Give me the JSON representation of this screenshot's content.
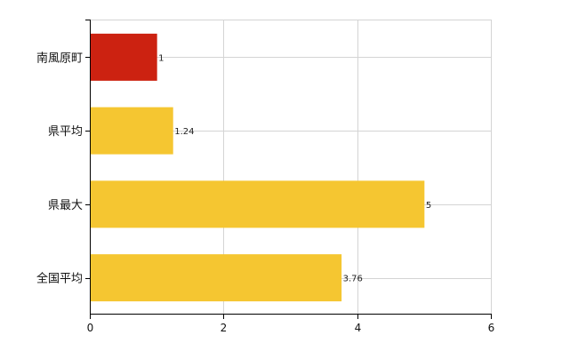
{
  "chart_data": {
    "type": "bar",
    "orientation": "horizontal",
    "categories": [
      "南風原町",
      "県平均",
      "県最大",
      "全国平均"
    ],
    "values": [
      1,
      1.24,
      5,
      3.76
    ],
    "value_labels": [
      "1",
      "1.24",
      "5",
      "3.76"
    ],
    "bar_colors": [
      "#cc2211",
      "#f5c631",
      "#f5c631",
      "#f5c631"
    ],
    "xlim": [
      0,
      6
    ],
    "x_ticks": [
      0,
      2,
      4,
      6
    ],
    "x_tick_labels": [
      "0",
      "2",
      "4",
      "6"
    ],
    "grid": true,
    "title": "",
    "xlabel": "",
    "ylabel": ""
  }
}
